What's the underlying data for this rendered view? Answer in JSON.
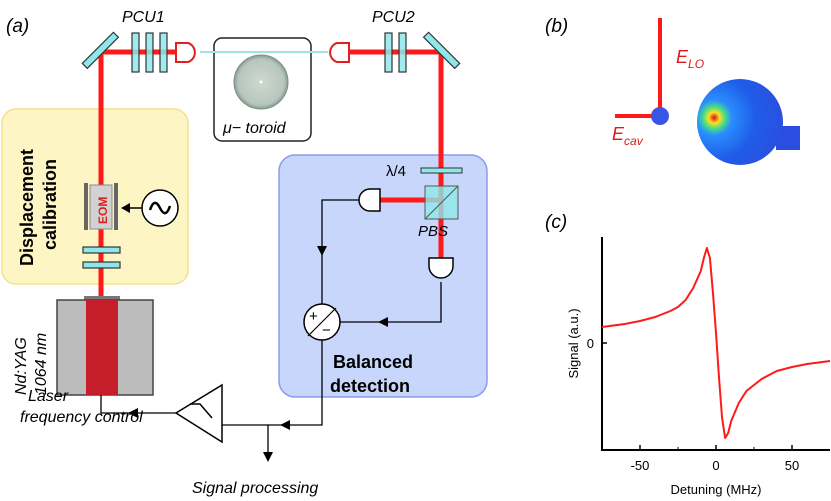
{
  "panel_a": {
    "label": "(a)",
    "pcu1": "PCU1",
    "pcu2": "PCU2",
    "toroid": "μ− toroid",
    "calibration_line1": "Displacement",
    "calibration_line2": "calibration",
    "eom": "EOM",
    "laser_line1": "Nd:YAG",
    "laser_line2": "1064 nm",
    "quarter_wave": "λ/4",
    "pbs": "PBS",
    "balanced_line1": "Balanced",
    "balanced_line2": "detection",
    "subtract_plus": "+",
    "subtract_minus": "−",
    "freq_control_line1": "Laser",
    "freq_control_line2": "frequency control",
    "signal_processing": "Signal processing"
  },
  "panel_b": {
    "label": "(b)",
    "e_lo": "E",
    "e_lo_sub": "LO",
    "e_cav": "E",
    "e_cav_sub": "cav"
  },
  "colors": {
    "beam": "#ff1a1a",
    "optic": "#8ee8ea",
    "calibration_box": "#fdf6c4",
    "detection_box": "#c9d6fb"
  },
  "chart_data": {
    "type": "line",
    "label": "(c)",
    "xlabel": "Detuning (MHz)",
    "ylabel": "Signal (a.u.)",
    "xlim": [
      -75,
      75
    ],
    "ylim": [
      -1.07,
      1.06
    ],
    "xticks": [
      -50,
      0,
      50
    ],
    "yticks": [
      0
    ],
    "grid": false,
    "series": [
      {
        "color": "#ff1a1a",
        "x": [
          -75,
          -60,
          -50,
          -40,
          -30,
          -25,
          -20,
          -15,
          -10,
          -8,
          -6,
          -4,
          -2,
          0,
          2,
          4,
          6,
          8,
          10,
          15,
          20,
          30,
          40,
          50,
          60,
          75
        ],
        "y": [
          0.16,
          0.19,
          0.22,
          0.26,
          0.32,
          0.36,
          0.43,
          0.55,
          0.72,
          0.85,
          0.95,
          0.85,
          0.5,
          0.1,
          -0.35,
          -0.75,
          -0.95,
          -0.9,
          -0.78,
          -0.6,
          -0.48,
          -0.36,
          -0.28,
          -0.24,
          -0.21,
          -0.18
        ]
      }
    ]
  }
}
